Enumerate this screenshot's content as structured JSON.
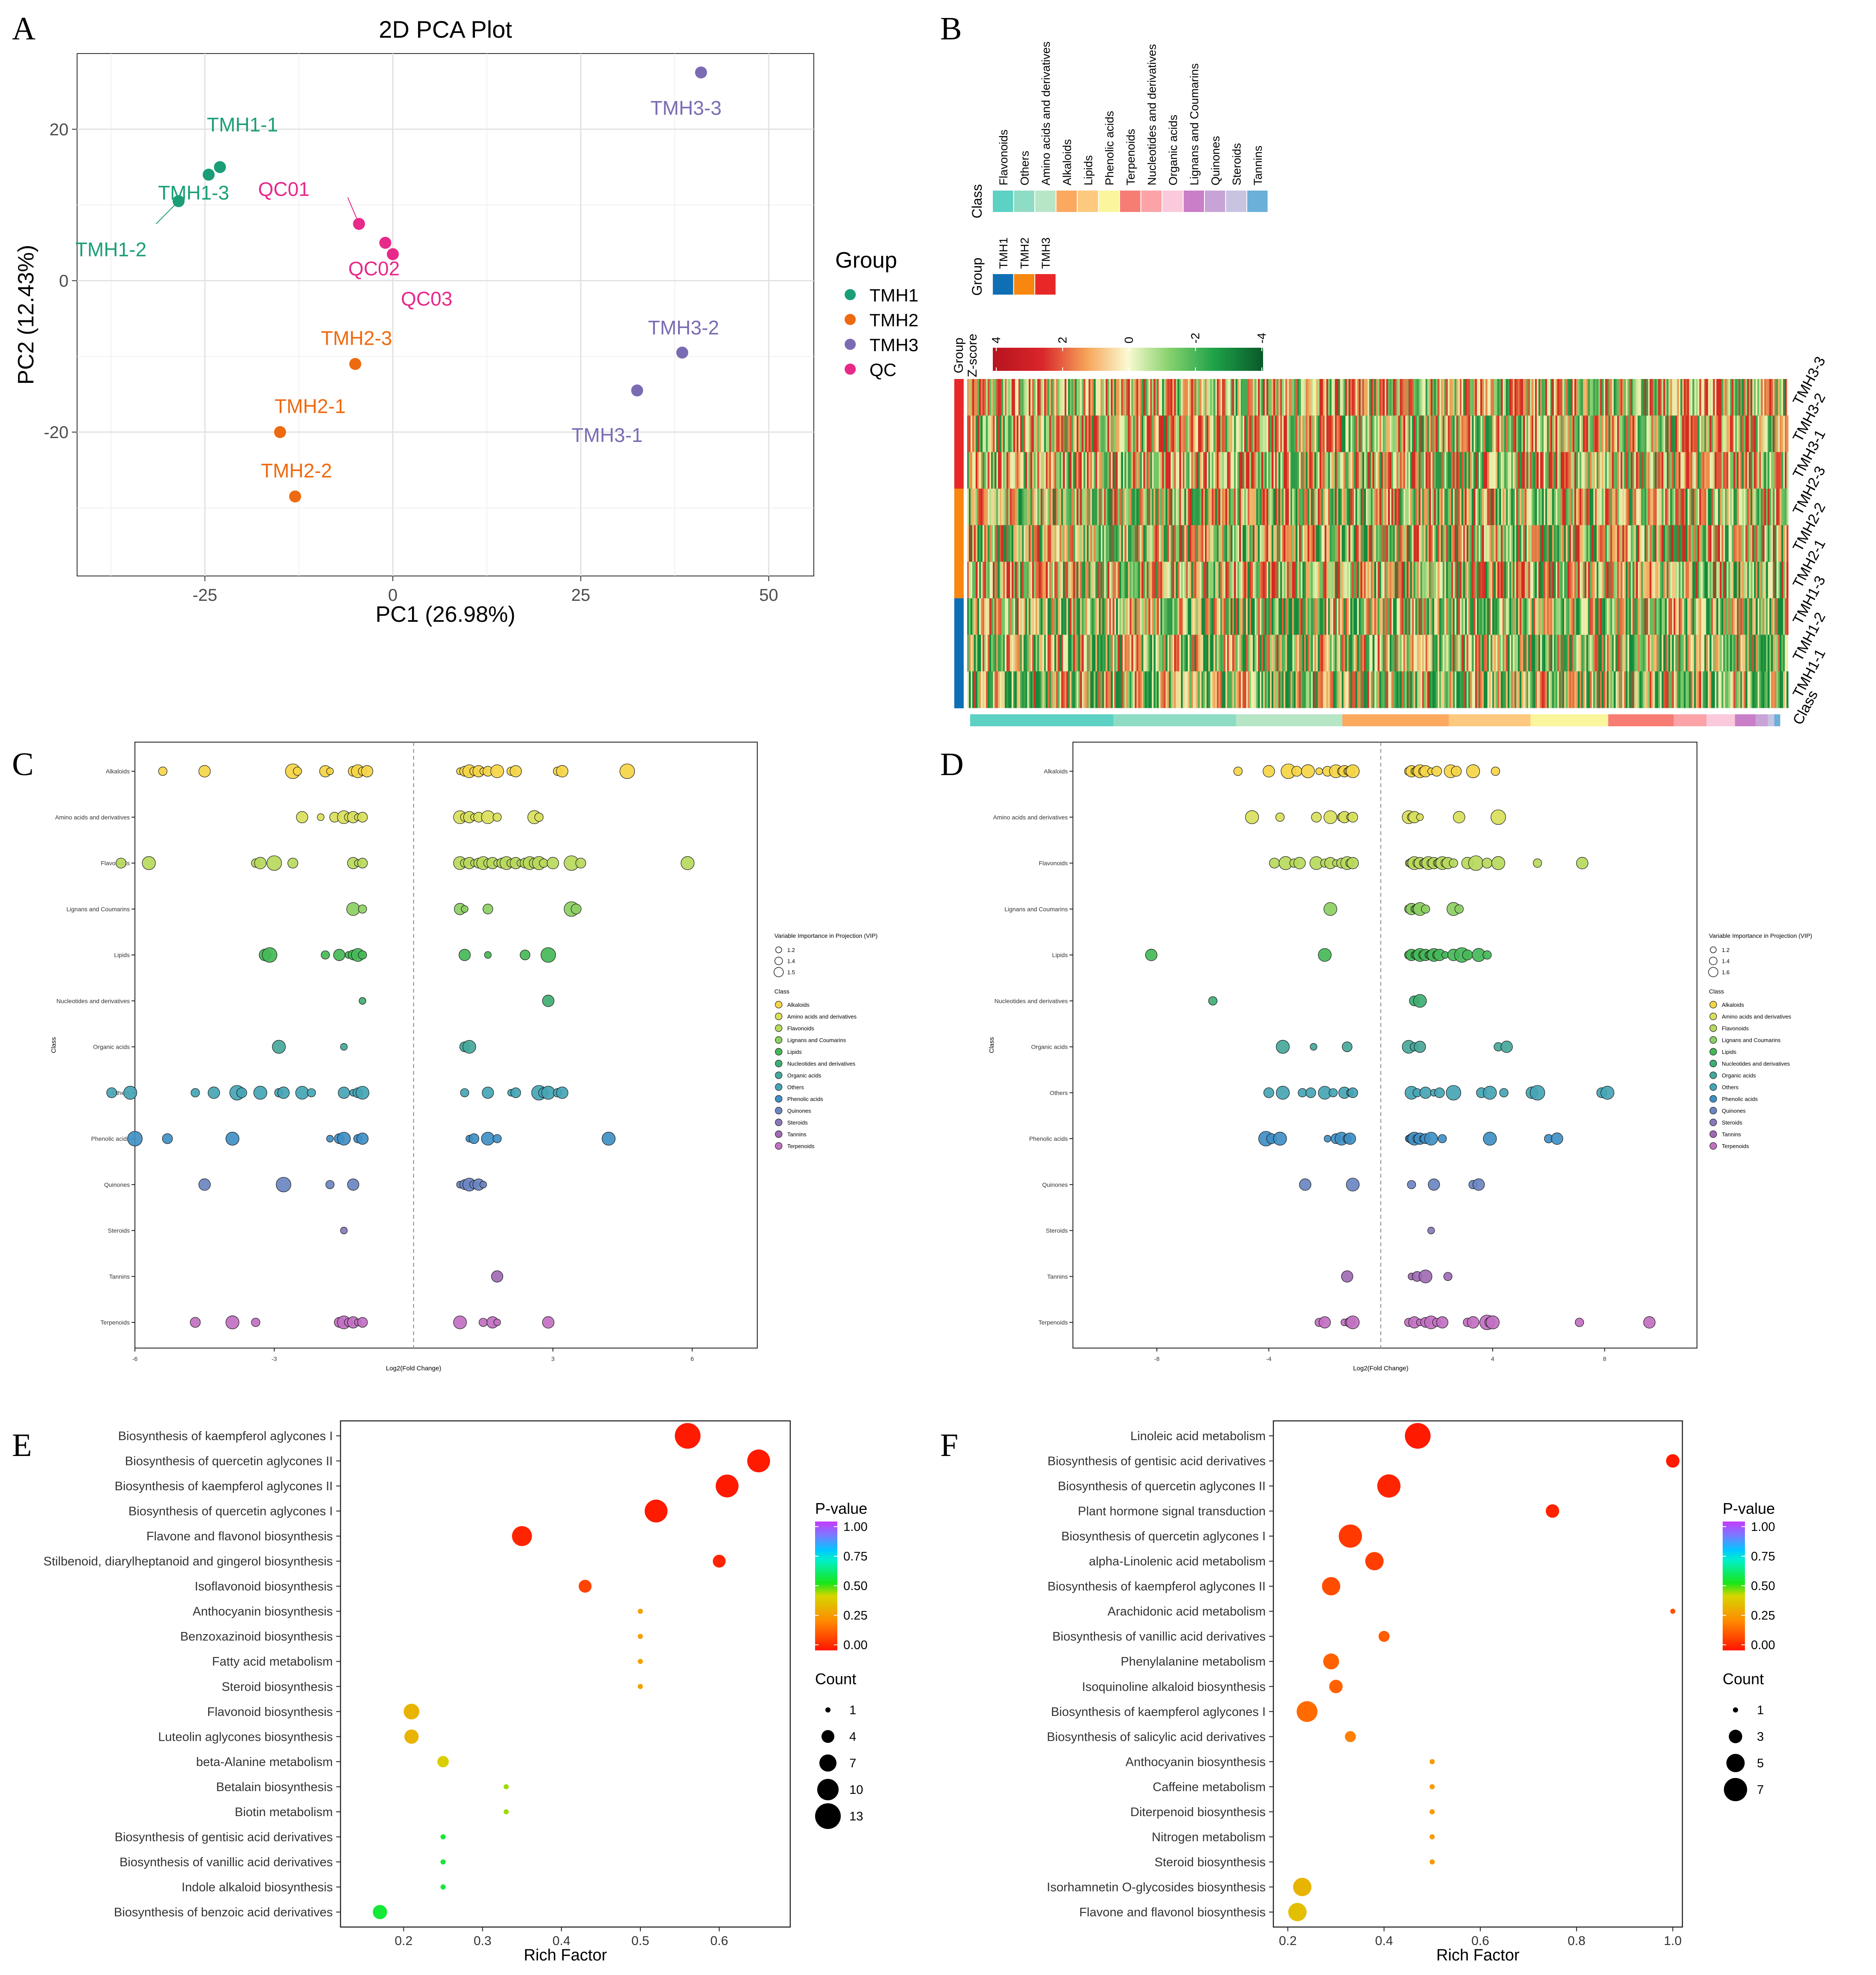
{
  "panel_letters": {
    "A": "A",
    "B": "B",
    "C": "C",
    "D": "D",
    "E": "E",
    "F": "F"
  },
  "chart_data": [
    {
      "id": "A",
      "type": "scatter",
      "title": "2D PCA Plot",
      "xlabel": "PC1 (26.98%)",
      "ylabel": "PC2 (12.43%)",
      "xlim": [
        -42,
        56
      ],
      "ylim": [
        -39,
        30
      ],
      "xticks": [
        -25,
        0,
        25,
        50
      ],
      "yticks": [
        20,
        0,
        -20
      ],
      "xtick_labels": [
        "-25",
        "0",
        "25",
        "50"
      ],
      "ytick_labels": [
        "20",
        "0",
        "-20"
      ],
      "legend_title": "Group",
      "groups": [
        {
          "name": "TMH1",
          "color": "#1b9e77"
        },
        {
          "name": "TMH2",
          "color": "#ee6a10"
        },
        {
          "name": "TMH3",
          "color": "#7b6bb3"
        },
        {
          "name": "QC",
          "color": "#e7298a"
        }
      ],
      "points": [
        {
          "label": "TMH1-1",
          "group": "TMH1",
          "x": -23,
          "y": 15
        },
        {
          "label": "TMH1-3",
          "group": "TMH1",
          "x": -24.5,
          "y": 14
        },
        {
          "label": "TMH1-2",
          "group": "TMH1",
          "x": -28.5,
          "y": 10.5
        },
        {
          "label": "QC01",
          "group": "QC",
          "x": -4.5,
          "y": 7.5
        },
        {
          "label": "QC02",
          "group": "QC",
          "x": -1,
          "y": 5
        },
        {
          "label": "QC03",
          "group": "QC",
          "x": 0,
          "y": 3.5
        },
        {
          "label": "TMH2-3",
          "group": "TMH2",
          "x": -5,
          "y": -11
        },
        {
          "label": "TMH2-1",
          "group": "TMH2",
          "x": -15,
          "y": -20
        },
        {
          "label": "TMH2-2",
          "group": "TMH2",
          "x": -13,
          "y": -28.5
        },
        {
          "label": "TMH3-3",
          "group": "TMH3",
          "x": 41,
          "y": 27.5
        },
        {
          "label": "TMH3-2",
          "group": "TMH3",
          "x": 38.5,
          "y": -9.5
        },
        {
          "label": "TMH3-1",
          "group": "TMH3",
          "x": 32.5,
          "y": -14.5
        }
      ]
    },
    {
      "id": "B",
      "type": "heatmap",
      "class_label": "Class",
      "group_label": "Group",
      "zscore_label": "Z-score",
      "zscore_ticks": [
        "4",
        "2",
        "0",
        "-2",
        "-4"
      ],
      "class_legend": [
        {
          "name": "Flavonoids",
          "color": "#5cd1c4"
        },
        {
          "name": "Others",
          "color": "#8fdcc5"
        },
        {
          "name": "Amino acids and derivatives",
          "color": "#b7e6c7"
        },
        {
          "name": "Alkaloids",
          "color": "#fba95e"
        },
        {
          "name": "Lipids",
          "color": "#fdc97e"
        },
        {
          "name": "Phenolic acids",
          "color": "#fbf59d"
        },
        {
          "name": "Terpenoids",
          "color": "#f77c74"
        },
        {
          "name": "Nucleotides and derivatives",
          "color": "#fba3a7"
        },
        {
          "name": "Organic acids",
          "color": "#fbc9dc"
        },
        {
          "name": "Lignans and Coumarins",
          "color": "#c97ec8"
        },
        {
          "name": "Quinones",
          "color": "#c8a3d6"
        },
        {
          "name": "Steroids",
          "color": "#c8c3e1"
        },
        {
          "name": "Tannins",
          "color": "#6bb0d8"
        }
      ],
      "group_legend": [
        {
          "name": "TMH1",
          "color": "#0f6fb5"
        },
        {
          "name": "TMH2",
          "color": "#f7870f"
        },
        {
          "name": "TMH3",
          "color": "#e82828"
        }
      ],
      "rows": [
        "TMH3-3",
        "TMH3-2",
        "TMH3-1",
        "TMH2-3",
        "TMH2-2",
        "TMH2-1",
        "TMH1-3",
        "TMH1-2",
        "TMH1-1"
      ],
      "row_groups": [
        "TMH3",
        "TMH3",
        "TMH3",
        "TMH2",
        "TMH2",
        "TMH2",
        "TMH1",
        "TMH1",
        "TMH1"
      ],
      "bottom_label": "Class",
      "class_bar_fractions": [
        0.175,
        0.15,
        0.13,
        0.13,
        0.1,
        0.095,
        0.08,
        0.04,
        0.035,
        0.025,
        0.015,
        0.008,
        0.007
      ]
    },
    {
      "id": "C",
      "type": "scatter",
      "xlabel": "Log2(Fold Change)",
      "ylabel": "Class",
      "xlim": [
        -6,
        7.4
      ],
      "xticks": [
        -6,
        -3,
        3,
        6
      ],
      "xtick_labels": [
        "-6",
        "-3",
        "3",
        "6"
      ],
      "categories": [
        "Alkaloids",
        "Amino acids and derivatives",
        "Flavonoids",
        "Lignans and Coumarins",
        "Lipids",
        "Nucleotides and derivatives",
        "Organic acids",
        "Others",
        "Phenolic acids",
        "Quinones",
        "Steroids",
        "Tannins",
        "Terpenoids"
      ],
      "category_colors": [
        "#f5d547",
        "#d9e05a",
        "#b7d95c",
        "#8ccf62",
        "#45b857",
        "#3fae72",
        "#45a89a",
        "#45a5b5",
        "#3f8fc5",
        "#6b86c2",
        "#8a78b8",
        "#a06ab5",
        "#c270c2"
      ],
      "size_legend_title": "Variable Importance in Projection (VIP)",
      "size_legend": [
        "1.2",
        "1.4",
        "1.5"
      ],
      "class_legend_title": "Class",
      "points_by_category": [
        [
          -5.4,
          -4.5,
          -2.6,
          -2.5,
          -1.9,
          -1.8,
          -1.3,
          -1.2,
          -1.1,
          -1.0,
          1.0,
          1.1,
          1.2,
          1.3,
          1.4,
          1.5,
          1.6,
          1.8,
          2.1,
          2.2,
          3.1,
          3.2,
          4.6
        ],
        [
          -2.4,
          -2.0,
          -1.7,
          -1.5,
          -1.4,
          -1.3,
          -1.2,
          -1.1,
          1.0,
          1.1,
          1.2,
          1.3,
          1.4,
          1.6,
          1.8,
          2.6,
          2.7
        ],
        [
          -6.3,
          -5.7,
          -3.4,
          -3.3,
          -3.0,
          -2.6,
          -1.3,
          -1.2,
          -1.1,
          1.0,
          1.1,
          1.2,
          1.3,
          1.4,
          1.5,
          1.6,
          1.7,
          1.8,
          1.9,
          2.0,
          2.1,
          2.2,
          2.3,
          2.4,
          2.5,
          2.6,
          2.7,
          2.8,
          3.0,
          3.4,
          3.6,
          5.9
        ],
        [
          -1.3,
          -1.1,
          1.0,
          1.1,
          1.6,
          3.4,
          3.5
        ],
        [
          -3.2,
          -3.1,
          -1.9,
          -1.6,
          -1.4,
          -1.3,
          -1.2,
          -1.1,
          1.1,
          1.6,
          2.4,
          2.9
        ],
        [
          -1.1,
          2.9
        ],
        [
          -2.9,
          -1.5,
          1.1,
          1.2
        ],
        [
          -6.5,
          -6.1,
          -4.7,
          -4.3,
          -3.8,
          -3.7,
          -3.3,
          -2.9,
          -2.8,
          -2.4,
          -2.2,
          -1.5,
          -1.3,
          -1.2,
          -1.1,
          1.1,
          1.6,
          2.1,
          2.2,
          2.7,
          2.8,
          2.9,
          3.1,
          3.2
        ],
        [
          -6.0,
          -5.3,
          -3.9,
          -1.8,
          -1.6,
          -1.5,
          -1.2,
          -1.1,
          1.2,
          1.3,
          1.6,
          1.8,
          4.2
        ],
        [
          -4.5,
          -2.8,
          -1.8,
          -1.3,
          1.0,
          1.1,
          1.2,
          1.3,
          1.4,
          1.5
        ],
        [
          -1.5
        ],
        [
          1.8
        ],
        [
          -4.7,
          -3.9,
          -3.4,
          -1.6,
          -1.5,
          -1.4,
          -1.3,
          -1.2,
          -1.1,
          1.0,
          1.5,
          1.7,
          1.8,
          2.9
        ]
      ]
    },
    {
      "id": "D",
      "type": "scatter",
      "xlabel": "Log2(Fold Change)",
      "ylabel": "Class",
      "xlim": [
        -11,
        11.3
      ],
      "xticks": [
        -8,
        -4,
        4,
        8
      ],
      "xtick_labels": [
        "-8",
        "-4",
        "4",
        "8"
      ],
      "categories": [
        "Alkaloids",
        "Amino acids and derivatives",
        "Flavonoids",
        "Lignans and Coumarins",
        "Lipids",
        "Nucleotides and derivatives",
        "Organic acids",
        "Others",
        "Phenolic acids",
        "Quinones",
        "Steroids",
        "Tannins",
        "Terpenoids"
      ],
      "category_colors": [
        "#f5d547",
        "#d9e05a",
        "#b7d95c",
        "#8ccf62",
        "#45b857",
        "#3fae72",
        "#45a89a",
        "#45a5b5",
        "#3f8fc5",
        "#6b86c2",
        "#8a78b8",
        "#a06ab5",
        "#c270c2"
      ],
      "size_legend_title": "Variable Importance in Projection (VIP)",
      "size_legend": [
        "1.2",
        "1.4",
        "1.6"
      ],
      "class_legend_title": "Class",
      "points_by_category": [
        [
          -5.1,
          -4.0,
          -3.3,
          -3.0,
          -2.6,
          -2.2,
          -1.9,
          -1.6,
          -1.4,
          -1.3,
          -1.2,
          -1.1,
          -1.0,
          1.0,
          1.1,
          1.2,
          1.3,
          1.4,
          1.5,
          1.6,
          1.8,
          2.0,
          2.5,
          2.7,
          3.3,
          4.1
        ],
        [
          -4.6,
          -3.6,
          -2.3,
          -1.8,
          -1.4,
          -1.3,
          -1.1,
          -1.0,
          1.0,
          1.1,
          1.2,
          1.4,
          2.8,
          4.2
        ],
        [
          -3.8,
          -3.4,
          -3.1,
          -2.9,
          -2.3,
          -2.0,
          -1.8,
          -1.6,
          -1.4,
          -1.2,
          -1.1,
          -1.0,
          1.0,
          1.1,
          1.2,
          1.3,
          1.4,
          1.5,
          1.6,
          1.7,
          1.8,
          1.9,
          2.0,
          2.1,
          2.2,
          2.3,
          2.4,
          2.6,
          3.1,
          3.4,
          3.8,
          4.2,
          5.6,
          7.2
        ],
        [
          -1.8,
          1.0,
          1.1,
          1.2,
          1.3,
          1.4,
          1.6,
          2.6,
          2.8
        ],
        [
          -8.2,
          -2.0,
          1.0,
          1.1,
          1.2,
          1.3,
          1.4,
          1.5,
          1.6,
          1.7,
          1.8,
          1.9,
          2.0,
          2.1,
          2.3,
          2.6,
          2.9,
          3.1,
          3.5,
          3.8
        ],
        [
          -6.0,
          1.2,
          1.4
        ],
        [
          -3.5,
          -2.4,
          -1.2,
          1.0,
          1.2,
          1.4,
          4.2,
          4.5
        ],
        [
          -4.0,
          -3.5,
          -2.8,
          -2.5,
          -2.0,
          -1.7,
          -1.3,
          -1.1,
          -1.0,
          1.1,
          1.3,
          1.6,
          1.9,
          2.1,
          2.6,
          3.6,
          3.9,
          4.4,
          5.4,
          5.6,
          7.9,
          8.1
        ],
        [
          -4.1,
          -3.9,
          -3.6,
          -1.9,
          -1.6,
          -1.4,
          -1.2,
          -1.1,
          1.0,
          1.1,
          1.2,
          1.3,
          1.4,
          1.5,
          1.6,
          1.8,
          2.2,
          3.9,
          6.0,
          6.3
        ],
        [
          -2.7,
          -1.0,
          1.1,
          1.9,
          3.3,
          3.5
        ],
        [
          1.8
        ],
        [
          -1.2,
          1.1,
          1.3,
          1.6,
          2.4
        ],
        [
          -2.2,
          -2.0,
          -1.3,
          -1.1,
          -1.0,
          1.0,
          1.2,
          1.4,
          1.6,
          1.8,
          2.0,
          2.2,
          3.1,
          3.3,
          3.8,
          3.9,
          4.0,
          7.1,
          9.6
        ]
      ]
    },
    {
      "id": "E",
      "type": "scatter",
      "xlabel": "Rich Factor",
      "xlim": [
        0.12,
        0.69
      ],
      "xticks": [
        0.2,
        0.3,
        0.4,
        0.5,
        0.6
      ],
      "xtick_labels": [
        "0.2",
        "0.3",
        "0.4",
        "0.5",
        "0.6"
      ],
      "color_legend_title": "P-value",
      "color_ticks": [
        "1.00",
        "0.75",
        "0.50",
        "0.25",
        "0.00"
      ],
      "size_legend_title": "Count",
      "size_legend": [
        "1",
        "4",
        "7",
        "10",
        "13"
      ],
      "pathways": [
        {
          "name": "Biosynthesis of kaempferol aglycones I",
          "x": 0.56,
          "count": 13,
          "p": 0.0
        },
        {
          "name": "Biosynthesis of quercetin aglycones II",
          "x": 0.65,
          "count": 11,
          "p": 0.0
        },
        {
          "name": "Biosynthesis of kaempferol aglycones II",
          "x": 0.61,
          "count": 11,
          "p": 0.0
        },
        {
          "name": "Biosynthesis of quercetin aglycones I",
          "x": 0.52,
          "count": 11,
          "p": 0.0
        },
        {
          "name": "Flavone and flavonol biosynthesis",
          "x": 0.35,
          "count": 9,
          "p": 0.02
        },
        {
          "name": "Stilbenoid, diarylheptanoid and gingerol biosynthesis",
          "x": 0.6,
          "count": 4,
          "p": 0.02
        },
        {
          "name": "Isoflavonoid biosynthesis",
          "x": 0.43,
          "count": 4,
          "p": 0.08
        },
        {
          "name": "Anthocyanin biosynthesis",
          "x": 0.5,
          "count": 1,
          "p": 0.28
        },
        {
          "name": "Benzoxazinoid biosynthesis",
          "x": 0.5,
          "count": 1,
          "p": 0.28
        },
        {
          "name": "Fatty acid metabolism",
          "x": 0.5,
          "count": 1,
          "p": 0.28
        },
        {
          "name": "Steroid biosynthesis",
          "x": 0.5,
          "count": 1,
          "p": 0.28
        },
        {
          "name": "Flavonoid biosynthesis",
          "x": 0.21,
          "count": 6,
          "p": 0.33
        },
        {
          "name": "Luteolin aglycones biosynthesis",
          "x": 0.21,
          "count": 5,
          "p": 0.33
        },
        {
          "name": "beta-Alanine metabolism",
          "x": 0.25,
          "count": 3,
          "p": 0.4
        },
        {
          "name": "Betalain biosynthesis",
          "x": 0.33,
          "count": 1,
          "p": 0.45
        },
        {
          "name": "Biotin metabolism",
          "x": 0.33,
          "count": 1,
          "p": 0.45
        },
        {
          "name": "Biosynthesis of gentisic acid derivatives",
          "x": 0.25,
          "count": 1,
          "p": 0.55
        },
        {
          "name": "Biosynthesis of vanillic acid derivatives",
          "x": 0.25,
          "count": 1,
          "p": 0.55
        },
        {
          "name": "Indole alkaloid biosynthesis",
          "x": 0.25,
          "count": 1,
          "p": 0.55
        },
        {
          "name": "Biosynthesis of benzoic acid derivatives",
          "x": 0.17,
          "count": 5,
          "p": 0.55
        }
      ]
    },
    {
      "id": "F",
      "type": "scatter",
      "xlabel": "Rich Factor",
      "xlim": [
        0.17,
        1.02
      ],
      "xticks": [
        0.2,
        0.4,
        0.6,
        0.8,
        1.0
      ],
      "xtick_labels": [
        "0.2",
        "0.4",
        "0.6",
        "0.8",
        "1.0"
      ],
      "color_legend_title": "P-value",
      "color_ticks": [
        "1.00",
        "0.75",
        "0.50",
        "0.25",
        "0.00"
      ],
      "size_legend_title": "Count",
      "size_legend": [
        "1",
        "3",
        "5",
        "7"
      ],
      "pathways": [
        {
          "name": "Linoleic acid metabolism",
          "x": 0.47,
          "count": 8,
          "p": 0.0
        },
        {
          "name": "Biosynthesis of gentisic acid derivatives",
          "x": 1.0,
          "count": 3,
          "p": 0.0
        },
        {
          "name": "Biosynthesis of quercetin aglycones II",
          "x": 0.41,
          "count": 7,
          "p": 0.02
        },
        {
          "name": "Plant hormone signal transduction",
          "x": 0.75,
          "count": 3,
          "p": 0.02
        },
        {
          "name": "Biosynthesis of quercetin aglycones I",
          "x": 0.33,
          "count": 7,
          "p": 0.06
        },
        {
          "name": "alpha-Linolenic acid metabolism",
          "x": 0.38,
          "count": 5,
          "p": 0.07
        },
        {
          "name": "Biosynthesis of kaempferol aglycones II",
          "x": 0.29,
          "count": 5,
          "p": 0.1
        },
        {
          "name": "Arachidonic acid metabolism",
          "x": 1.0,
          "count": 1,
          "p": 0.11
        },
        {
          "name": "Biosynthesis of vanillic acid derivatives",
          "x": 0.4,
          "count": 2,
          "p": 0.13
        },
        {
          "name": "Phenylalanine metabolism",
          "x": 0.29,
          "count": 4,
          "p": 0.14
        },
        {
          "name": "Isoquinoline alkaloid biosynthesis",
          "x": 0.3,
          "count": 3,
          "p": 0.14
        },
        {
          "name": "Biosynthesis of kaempferol aglycones I",
          "x": 0.24,
          "count": 6,
          "p": 0.16
        },
        {
          "name": "Biosynthesis of salicylic acid derivatives",
          "x": 0.33,
          "count": 2,
          "p": 0.2
        },
        {
          "name": "Anthocyanin biosynthesis",
          "x": 0.5,
          "count": 1,
          "p": 0.26
        },
        {
          "name": "Caffeine metabolism",
          "x": 0.5,
          "count": 1,
          "p": 0.26
        },
        {
          "name": "Diterpenoid biosynthesis",
          "x": 0.5,
          "count": 1,
          "p": 0.26
        },
        {
          "name": "Nitrogen metabolism",
          "x": 0.5,
          "count": 1,
          "p": 0.26
        },
        {
          "name": "Steroid biosynthesis",
          "x": 0.5,
          "count": 1,
          "p": 0.26
        },
        {
          "name": "Isorhamnetin O-glycosides biosynthesis",
          "x": 0.23,
          "count": 5,
          "p": 0.33
        },
        {
          "name": "Flavone and flavonol biosynthesis",
          "x": 0.22,
          "count": 5,
          "p": 0.36
        }
      ]
    }
  ]
}
